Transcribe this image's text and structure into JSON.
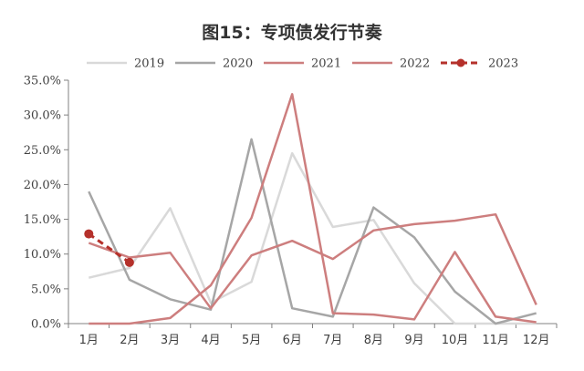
{
  "chart_data": {
    "type": "line",
    "title": "图15：专项债发行节奏",
    "xlabel": "",
    "ylabel": "",
    "categories": [
      "1月",
      "2月",
      "3月",
      "4月",
      "5月",
      "6月",
      "7月",
      "8月",
      "9月",
      "10月",
      "11月",
      "12月"
    ],
    "y_ticks": [
      "0.0%",
      "5.0%",
      "10.0%",
      "15.0%",
      "20.0%",
      "25.0%",
      "30.0%",
      "35.0%"
    ],
    "ylim": [
      0,
      35
    ],
    "legend_position": "top",
    "grid": false,
    "series": [
      {
        "name": "2019",
        "color": "#d9d9d9",
        "dashed": false,
        "markers": false,
        "values": [
          6.6,
          8.0,
          16.6,
          3.0,
          6.0,
          24.5,
          13.9,
          14.9,
          5.8,
          0,
          0,
          0
        ]
      },
      {
        "name": "2020",
        "color": "#a6a6a6",
        "dashed": false,
        "markers": false,
        "values": [
          19.0,
          6.3,
          3.5,
          2.0,
          26.5,
          2.2,
          1.0,
          16.7,
          12.4,
          4.6,
          0,
          1.5
        ]
      },
      {
        "name": "2021",
        "color": "#cd7e7e",
        "dashed": false,
        "markers": false,
        "values": [
          0,
          0,
          0.8,
          5.5,
          15.2,
          33.0,
          1.5,
          1.3,
          0.6,
          10.3,
          1.0,
          0.2
        ]
      },
      {
        "name": "2022",
        "color": "#cd7e7e",
        "dashed": false,
        "markers": false,
        "values": [
          11.6,
          9.5,
          10.2,
          2.2,
          9.8,
          11.9,
          9.3,
          13.4,
          14.3,
          14.8,
          15.7,
          2.7
        ]
      },
      {
        "name": "2023",
        "color": "#b5312b",
        "dashed": true,
        "markers": true,
        "values": [
          12.9,
          8.8,
          null,
          null,
          null,
          null,
          null,
          null,
          null,
          null,
          null,
          null
        ]
      }
    ]
  }
}
